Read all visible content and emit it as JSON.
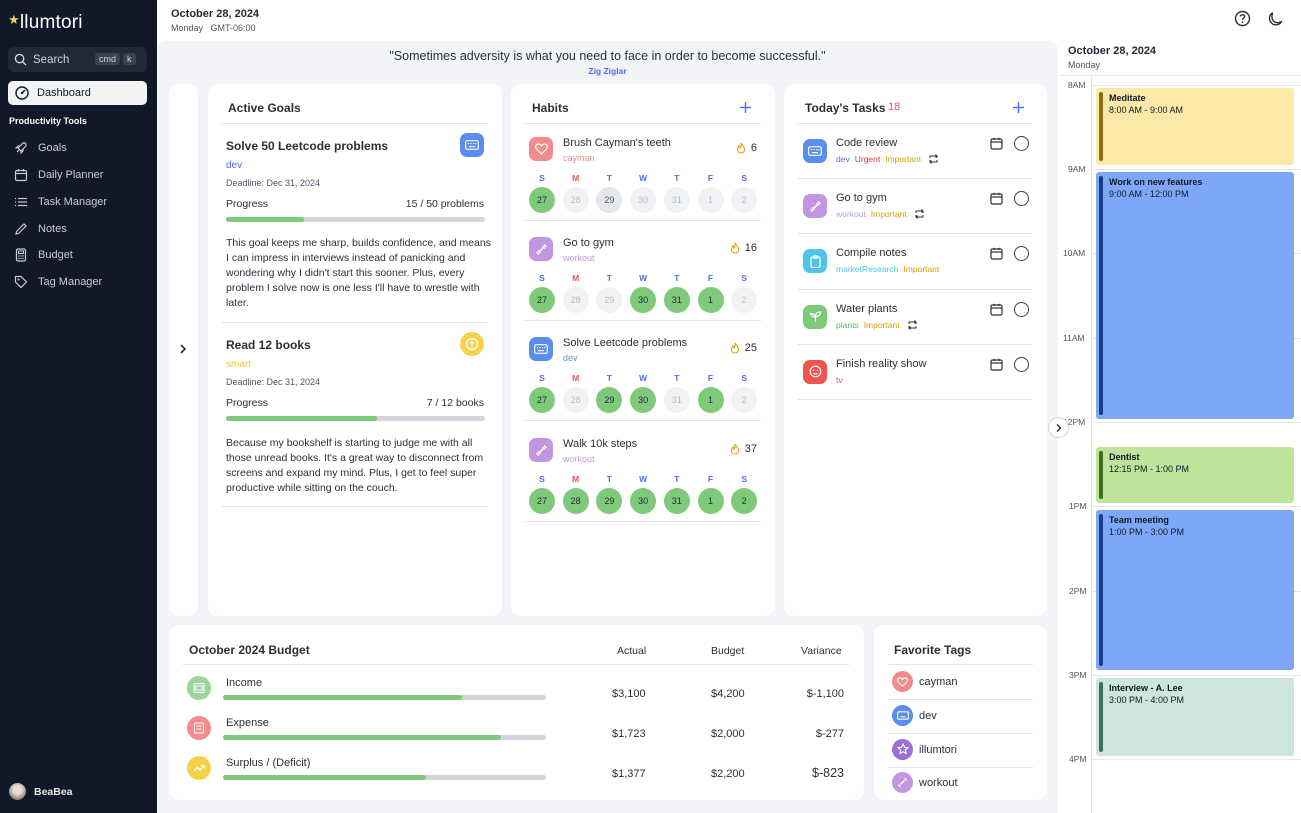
{
  "app": {
    "name": "llumtori",
    "user": "BeaBea"
  },
  "colors": {
    "sidebar": "#111827",
    "accent": "#4f6df2",
    "green": "#7fca7a",
    "urgent": "#e03b3b",
    "important": "#d9a200"
  },
  "sidebar": {
    "search_label": "Search",
    "kbd_cmd": "cmd",
    "kbd_k": "k",
    "dashboard": "Dashboard",
    "section": "Productivity Tools",
    "items": [
      {
        "label": "Goals",
        "icon": "rocket-icon"
      },
      {
        "label": "Daily Planner",
        "icon": "calendar-icon"
      },
      {
        "label": "Task Manager",
        "icon": "list-icon"
      },
      {
        "label": "Notes",
        "icon": "pencil-icon"
      },
      {
        "label": "Budget",
        "icon": "calculator-icon"
      },
      {
        "label": "Tag Manager",
        "icon": "tag-icon"
      }
    ]
  },
  "header": {
    "date": "October 28, 2024",
    "sub": "Monday   GMT-06:00"
  },
  "quote": {
    "text": "\"Sometimes adversity is what you need to face in order to become successful.\"",
    "author": "Zig Ziglar"
  },
  "goals": {
    "title": "Active Goals",
    "items": [
      {
        "title": "Solve 50 Leetcode problems",
        "tag": "dev",
        "deadline": "Deadline: Dec 31, 2024",
        "progress_label": "Progress",
        "progress_text": "15 / 50 problems",
        "progress": 0.3,
        "desc": "This goal keeps me sharp, builds confidence, and means I can impress in interviews instead of panicking and wondering why I didn't start this sooner. Plus, every problem I solve now is one less I'll have to wrestle with later."
      },
      {
        "title": "Read 12 books",
        "tag": "smart",
        "deadline": "Deadline: Dec 31, 2024",
        "progress_label": "Progress",
        "progress_text": "7 / 12 books",
        "progress": 0.583,
        "desc": "Because my bookshelf is starting to judge me with all those unread books. It's a great way to disconnect from screens and expand my mind. Plus, I get to feel super productive while sitting on the couch."
      }
    ]
  },
  "habits": {
    "title": "Habits",
    "days": [
      "S",
      "M",
      "T",
      "W",
      "T",
      "F",
      "S"
    ],
    "items": [
      {
        "name": "Brush Cayman's teeth",
        "tag": "cayman",
        "streak": "6",
        "dates": [
          "27",
          "28",
          "29",
          "30",
          "31",
          "1",
          "2"
        ]
      },
      {
        "name": "Go to gym",
        "tag": "workout",
        "streak": "16",
        "dates": [
          "27",
          "28",
          "29",
          "30",
          "31",
          "1",
          "2"
        ]
      },
      {
        "name": "Solve Leetcode problems",
        "tag": "dev",
        "streak": "25",
        "dates": [
          "27",
          "28",
          "29",
          "30",
          "31",
          "1",
          "2"
        ]
      },
      {
        "name": "Walk 10k steps",
        "tag": "workout",
        "streak": "37",
        "dates": [
          "27",
          "28",
          "29",
          "30",
          "31",
          "1",
          "2"
        ]
      }
    ]
  },
  "tasks": {
    "title": "Today's Tasks",
    "count": "18",
    "items": [
      {
        "name": "Code review",
        "tags": [
          "dev",
          "Urgent",
          "Important"
        ]
      },
      {
        "name": "Go to gym",
        "tags": [
          "workout",
          "Important"
        ]
      },
      {
        "name": "Compile notes",
        "tags": [
          "marketResearch",
          "Important"
        ]
      },
      {
        "name": "Water plants",
        "tags": [
          "plants",
          "Important"
        ]
      },
      {
        "name": "Finish reality show",
        "tags": [
          "tv"
        ]
      }
    ]
  },
  "budget": {
    "title": "October 2024 Budget",
    "cols": [
      "Actual",
      "Budget",
      "Variance"
    ],
    "rows": [
      {
        "label": "Income",
        "actual": "$3,100",
        "budget": "$4,200",
        "variance": "$-1,100",
        "ratio": 0.74
      },
      {
        "label": "Expense",
        "actual": "$1,723",
        "budget": "$2,000",
        "variance": "$-277",
        "ratio": 0.86
      },
      {
        "label": "Surplus / (Deficit)",
        "actual": "$1,377",
        "budget": "$2,200",
        "variance": "$-823",
        "ratio": 0.63
      }
    ]
  },
  "fav_tags": {
    "title": "Favorite Tags",
    "items": [
      "cayman",
      "dev",
      "illumtori",
      "workout"
    ]
  },
  "calendar": {
    "date": "October 28, 2024",
    "sub": "Monday",
    "hours": [
      "8AM",
      "9AM",
      "10AM",
      "11AM",
      "12PM",
      "1PM",
      "2PM",
      "3PM",
      "4PM"
    ],
    "events": [
      {
        "title": "Meditate",
        "time": "8:00 AM - 9:00 AM"
      },
      {
        "title": "Work on new features",
        "time": "9:00 AM - 12:00 PM"
      },
      {
        "title": "Dentist",
        "time": "12:15 PM - 1:00 PM"
      },
      {
        "title": "Team meeting",
        "time": "1:00 PM - 3:00 PM"
      },
      {
        "title": "Interview - A. Lee",
        "time": "3:00 PM - 4:00 PM"
      }
    ]
  }
}
